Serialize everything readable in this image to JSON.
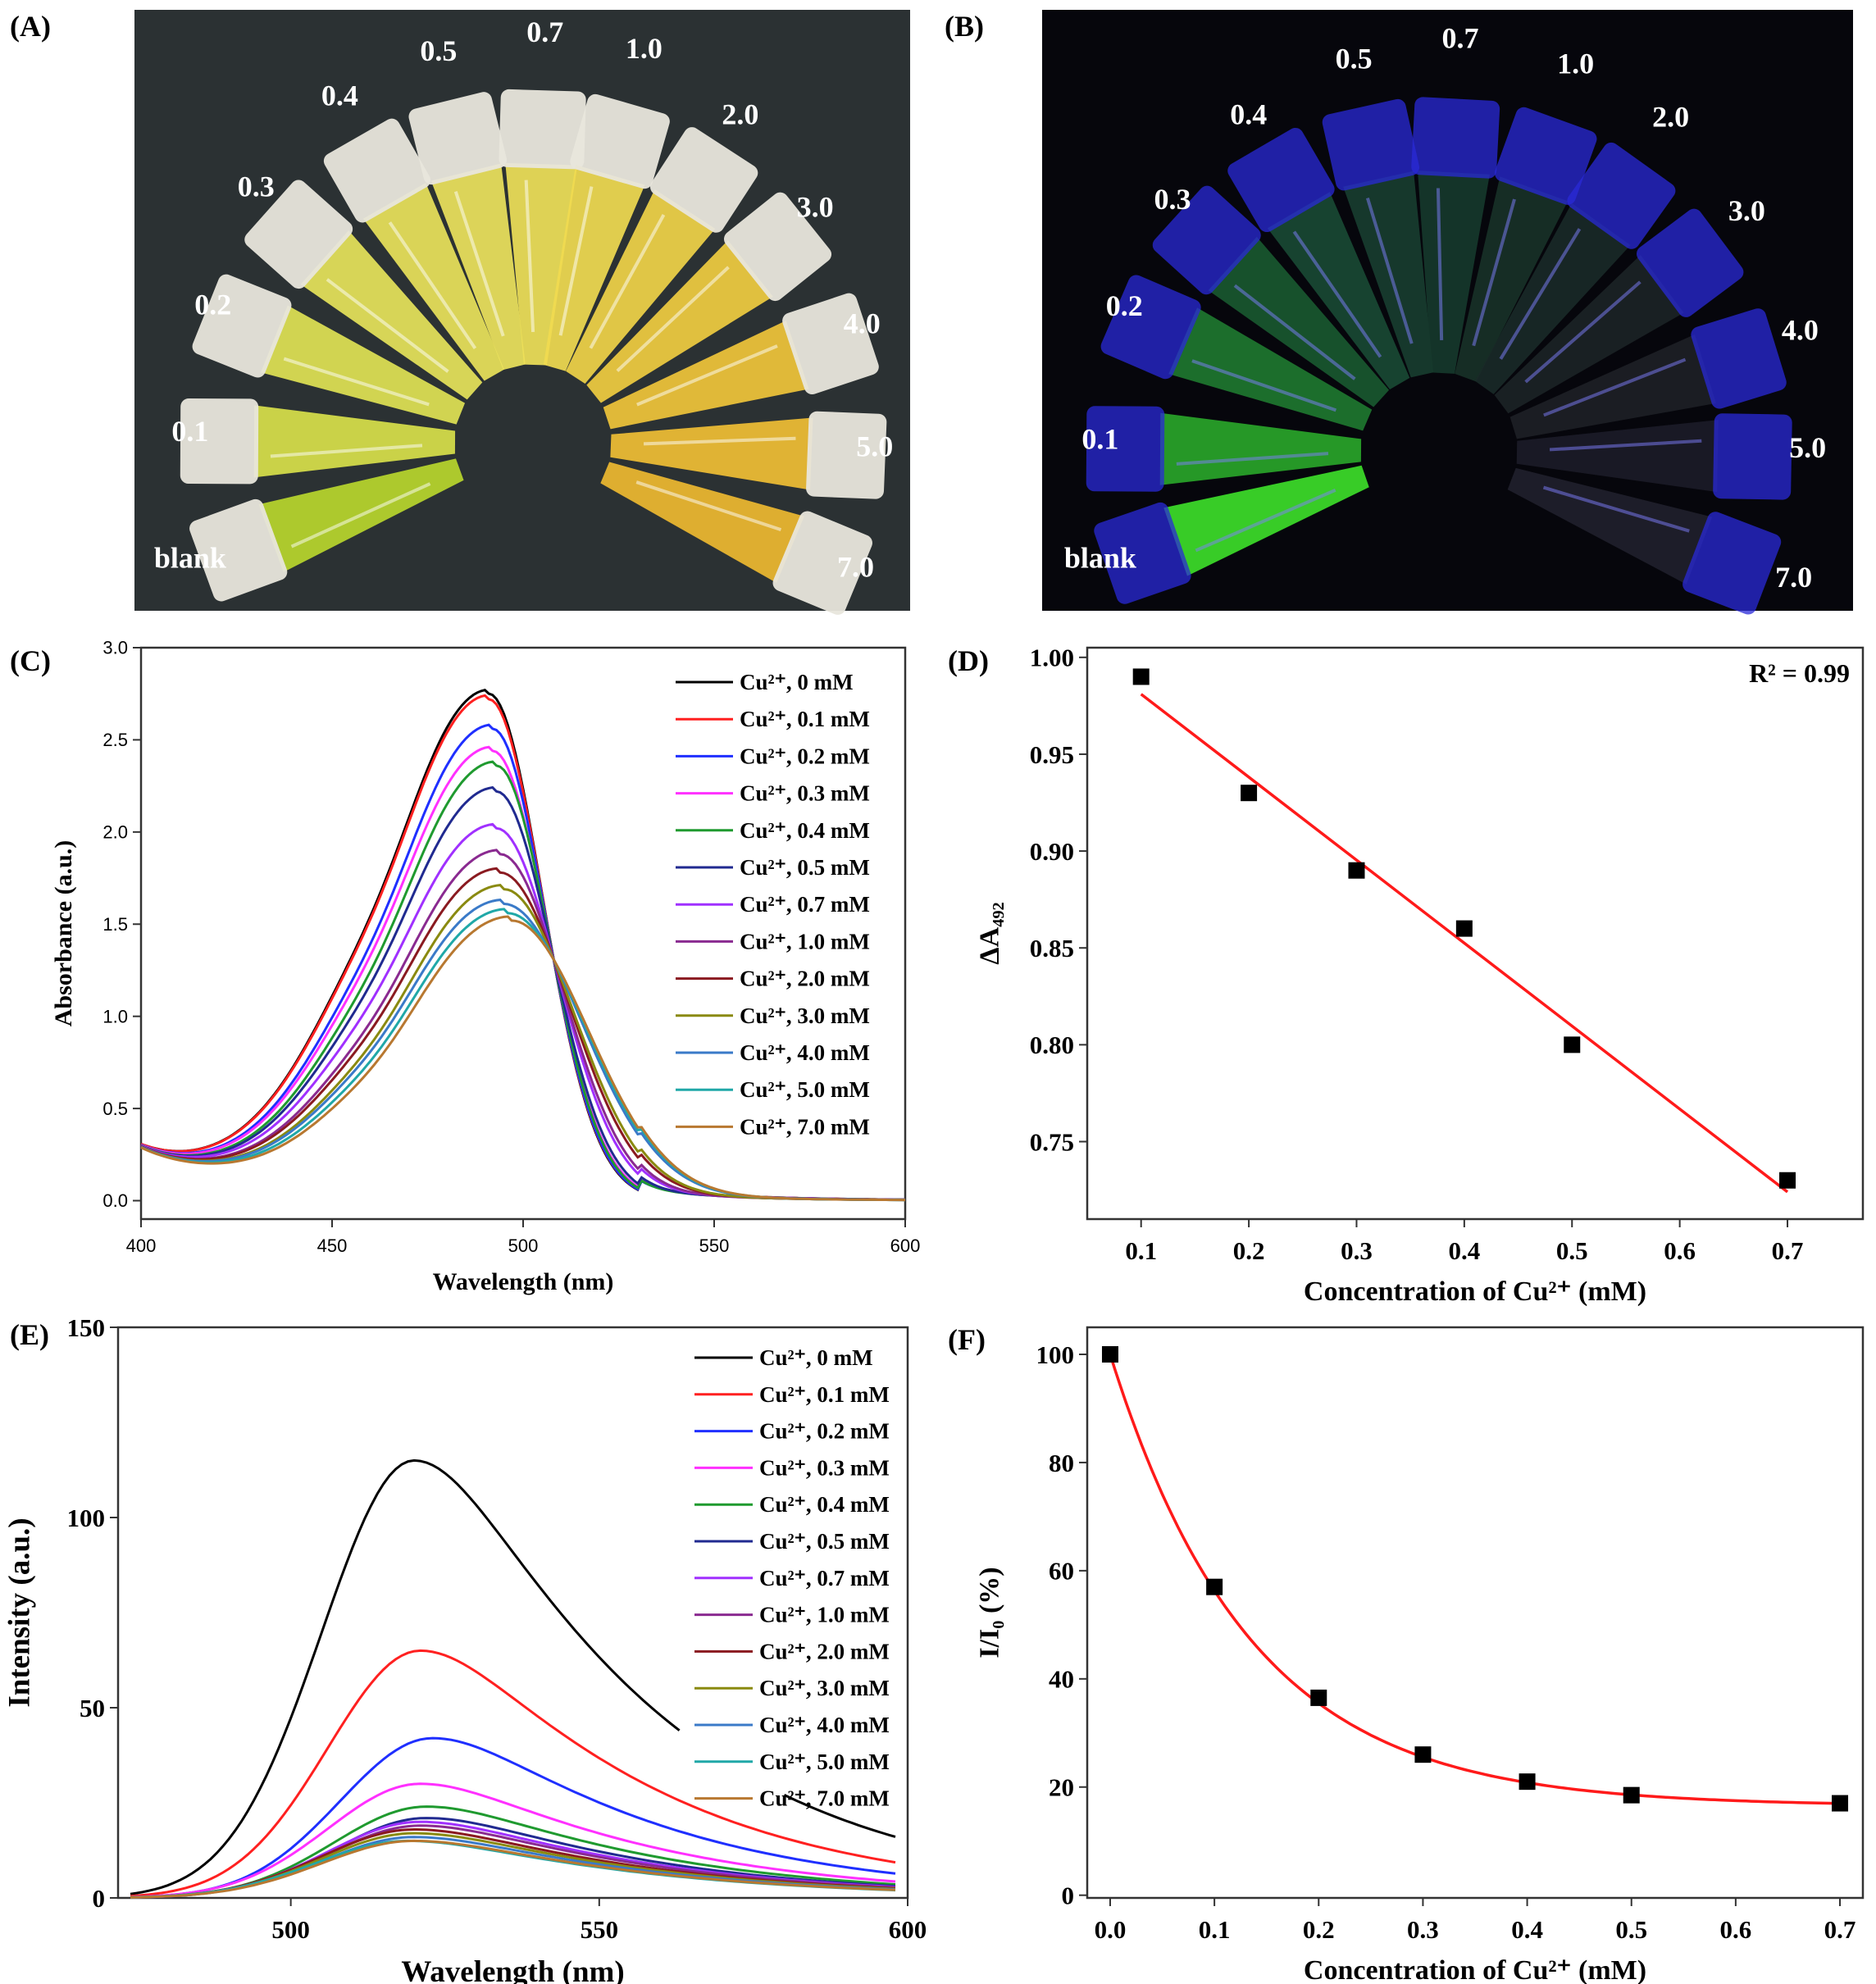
{
  "panel_labels": {
    "a": "(A)",
    "b": "(B)",
    "c": "(C)",
    "d": "(D)",
    "e": "(E)",
    "f": "(F)"
  },
  "photos": {
    "a": {
      "tube_labels": [
        "blank",
        "0.1",
        "0.2",
        "0.3",
        "0.4",
        "0.5",
        "0.7",
        "1.0",
        "2.0",
        "3.0",
        "4.0",
        "5.0",
        "7.0"
      ],
      "tube_colors": [
        "#b9d62c",
        "#d8e04a",
        "#dfe254",
        "#e6e35a",
        "#e9e25a",
        "#ece25c",
        "#eedf58",
        "#f0da50",
        "#f0d248",
        "#f0cc40",
        "#f0c43a",
        "#f0be34",
        "#eeb830"
      ],
      "background": "#2b3133"
    },
    "b": {
      "tube_labels": [
        "blank",
        "0.1",
        "0.2",
        "0.3",
        "0.4",
        "0.5",
        "0.7",
        "1.0",
        "2.0",
        "3.0",
        "4.0",
        "5.0",
        "7.0"
      ],
      "tube_colors": [
        "#3ee22a",
        "#2aa82a",
        "#1f7a30",
        "#1a5a30",
        "#1a4a34",
        "#183e30",
        "#163a2c",
        "#183228",
        "#1a2a28",
        "#1c2426",
        "#1e2026",
        "#1c1c28",
        "#20202c"
      ],
      "background": "#06060c"
    }
  },
  "chart_data": [
    {
      "id": "C",
      "type": "line",
      "title": "",
      "xlabel": "Wavelength (nm)",
      "ylabel": "Absorbance (a.u.)",
      "xlim": [
        400,
        600
      ],
      "ylim": [
        -0.1,
        3.0
      ],
      "xticks": [
        "400",
        "450",
        "500",
        "550",
        "600"
      ],
      "yticks": [
        "0.0",
        "0.5",
        "1.0",
        "1.5",
        "2.0",
        "2.5",
        "3.0"
      ],
      "isosbestic": {
        "x": 508,
        "y": 1.3
      },
      "legend": "top-right",
      "series": [
        {
          "name": "Cu²⁺, 0 mM",
          "color": "#000000",
          "peak_nm": 491,
          "peak": 2.74
        },
        {
          "name": "Cu²⁺, 0.1 mM",
          "color": "#ff2020",
          "peak_nm": 491,
          "peak": 2.71
        },
        {
          "name": "Cu²⁺, 0.2 mM",
          "color": "#1f2fff",
          "peak_nm": 492,
          "peak": 2.55
        },
        {
          "name": "Cu²⁺, 0.3 mM",
          "color": "#ff30ff",
          "peak_nm": 492,
          "peak": 2.43
        },
        {
          "name": "Cu²⁺, 0.4 mM",
          "color": "#1f9a2f",
          "peak_nm": 493,
          "peak": 2.35
        },
        {
          "name": "Cu²⁺, 0.5 mM",
          "color": "#202a90",
          "peak_nm": 493,
          "peak": 2.21
        },
        {
          "name": "Cu²⁺, 0.7 mM",
          "color": "#a030ff",
          "peak_nm": 493,
          "peak": 2.01
        },
        {
          "name": "Cu²⁺, 1.0 mM",
          "color": "#8a2a90",
          "peak_nm": 494,
          "peak": 1.87
        },
        {
          "name": "Cu²⁺, 2.0 mM",
          "color": "#8a1a20",
          "peak_nm": 494,
          "peak": 1.77
        },
        {
          "name": "Cu²⁺, 3.0 mM",
          "color": "#8a8a10",
          "peak_nm": 495,
          "peak": 1.68
        },
        {
          "name": "Cu²⁺, 4.0 mM",
          "color": "#3a7ac8",
          "peak_nm": 495,
          "peak": 1.6
        },
        {
          "name": "Cu²⁺, 5.0 mM",
          "color": "#20a8a8",
          "peak_nm": 496,
          "peak": 1.55
        },
        {
          "name": "Cu²⁺, 7.0 mM",
          "color": "#b87830",
          "peak_nm": 497,
          "peak": 1.51
        }
      ]
    },
    {
      "id": "D",
      "type": "scatter",
      "title": "",
      "xlabel": "Concentration of Cu²⁺ (mM)",
      "ylabel": "ΔA₄₉₂",
      "xlim": [
        0.05,
        0.77
      ],
      "ylim": [
        0.71,
        1.005
      ],
      "xticks": [
        "0.1",
        "0.2",
        "0.3",
        "0.4",
        "0.5",
        "0.6",
        "0.7"
      ],
      "yticks": [
        "0.75",
        "0.80",
        "0.85",
        "0.90",
        "0.95",
        "1.00"
      ],
      "points": [
        {
          "x": 0.1,
          "y": 0.99
        },
        {
          "x": 0.2,
          "y": 0.93
        },
        {
          "x": 0.3,
          "y": 0.89
        },
        {
          "x": 0.4,
          "y": 0.86
        },
        {
          "x": 0.5,
          "y": 0.8
        },
        {
          "x": 0.7,
          "y": 0.73
        }
      ],
      "fit": {
        "type": "linear",
        "x": [
          0.1,
          0.7
        ],
        "y": [
          0.981,
          0.724
        ],
        "color": "#ff1a1a"
      },
      "annotation": "R² = 0.99"
    },
    {
      "id": "E",
      "type": "line",
      "title": "",
      "xlabel": "Wavelength (nm)",
      "ylabel": "Intensity (a.u.)",
      "xlim": [
        472,
        600
      ],
      "ylim": [
        0,
        150
      ],
      "xticks": [
        "500",
        "550",
        "600"
      ],
      "yticks": [
        "0",
        "50",
        "100",
        "150"
      ],
      "legend": "top-right",
      "series": [
        {
          "name": "Cu²⁺, 0 mM",
          "color": "#000000",
          "peak_nm": 520,
          "peak": 115
        },
        {
          "name": "Cu²⁺, 0.1 mM",
          "color": "#ff2020",
          "peak_nm": 521,
          "peak": 65
        },
        {
          "name": "Cu²⁺, 0.2 mM",
          "color": "#1f2fff",
          "peak_nm": 523,
          "peak": 42
        },
        {
          "name": "Cu²⁺, 0.3 mM",
          "color": "#ff30ff",
          "peak_nm": 521,
          "peak": 30
        },
        {
          "name": "Cu²⁺, 0.4 mM",
          "color": "#1f9a2f",
          "peak_nm": 522,
          "peak": 24
        },
        {
          "name": "Cu²⁺, 0.5 mM",
          "color": "#202a90",
          "peak_nm": 522,
          "peak": 21
        },
        {
          "name": "Cu²⁺, 0.7 mM",
          "color": "#a030ff",
          "peak_nm": 521,
          "peak": 20
        },
        {
          "name": "Cu²⁺, 1.0 mM",
          "color": "#8a2a90",
          "peak_nm": 521,
          "peak": 19
        },
        {
          "name": "Cu²⁺, 2.0 mM",
          "color": "#8a1a20",
          "peak_nm": 520,
          "peak": 18
        },
        {
          "name": "Cu²⁺, 3.0 mM",
          "color": "#8a8a10",
          "peak_nm": 520,
          "peak": 17
        },
        {
          "name": "Cu²⁺, 4.0 mM",
          "color": "#3a7ac8",
          "peak_nm": 520,
          "peak": 16
        },
        {
          "name": "Cu²⁺, 5.0 mM",
          "color": "#20a8a8",
          "peak_nm": 519,
          "peak": 15
        },
        {
          "name": "Cu²⁺, 7.0 mM",
          "color": "#b87830",
          "peak_nm": 520,
          "peak": 15
        }
      ]
    },
    {
      "id": "F",
      "type": "scatter",
      "title": "",
      "xlabel": "Concentration of Cu²⁺ (mM)",
      "ylabel": "I/I₀ (%)",
      "xlim": [
        -0.022,
        0.722
      ],
      "ylim": [
        -0.5,
        105
      ],
      "xticks": [
        "0.0",
        "0.1",
        "0.2",
        "0.3",
        "0.4",
        "0.5",
        "0.6",
        "0.7"
      ],
      "yticks": [
        "0",
        "20",
        "40",
        "60",
        "80",
        "100"
      ],
      "points": [
        {
          "x": 0,
          "y": 100
        },
        {
          "x": 0.1,
          "y": 57
        },
        {
          "x": 0.2,
          "y": 36.5
        },
        {
          "x": 0.3,
          "y": 26
        },
        {
          "x": 0.4,
          "y": 21
        },
        {
          "x": 0.5,
          "y": 18.5
        },
        {
          "x": 0.7,
          "y": 17
        }
      ],
      "fit": {
        "type": "exponential",
        "y0": 16.5,
        "A": 83.5,
        "tau": 0.135,
        "color": "#ff1a1a"
      }
    }
  ]
}
